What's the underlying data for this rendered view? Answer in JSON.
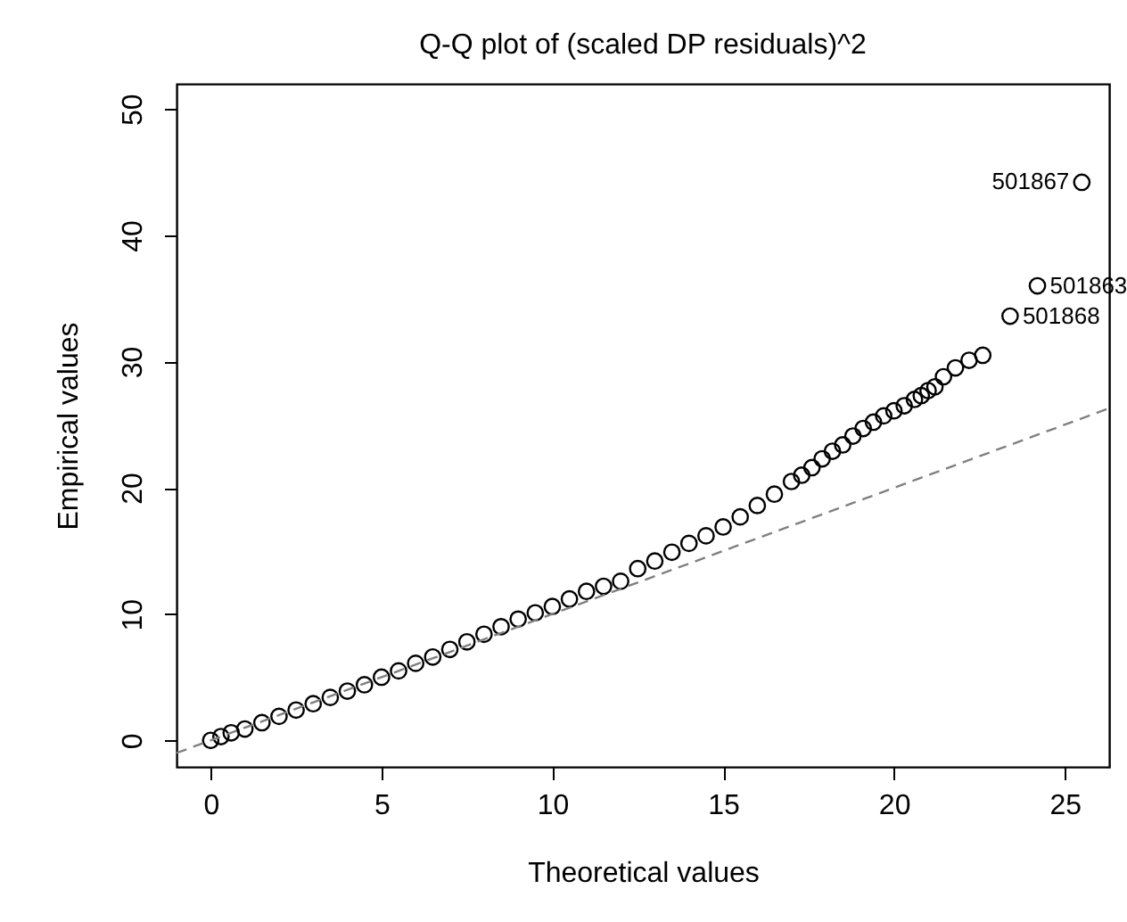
{
  "chart_data": {
    "type": "scatter",
    "title": "Q-Q plot of (scaled DP residuals)^2",
    "xlabel": "Theoretical values",
    "ylabel": "Empirical values",
    "xlim": [
      -1,
      26.3
    ],
    "ylim": [
      -2.1,
      52
    ],
    "xticks": [
      0,
      5,
      10,
      15,
      20,
      25
    ],
    "yticks": [
      0,
      10,
      20,
      30,
      40,
      50
    ],
    "grid": false,
    "series": [
      {
        "color": "#000000",
        "marker": "circle",
        "x": [
          0,
          0.3,
          0.6,
          1,
          1.5,
          2,
          2.5,
          3,
          3.5,
          4,
          4.5,
          5,
          5.5,
          6,
          6.5,
          7,
          7.5,
          8,
          8.5,
          9,
          9.5,
          10,
          10.5,
          11,
          11.5,
          12,
          12.5,
          13,
          13.5,
          14,
          14.5,
          15,
          15.5,
          16,
          16.5,
          17,
          17.3,
          17.6,
          17.9,
          18.2,
          18.5,
          18.8,
          19.1,
          19.4,
          19.7,
          20,
          20.3,
          20.6,
          20.8,
          21,
          21.2,
          21.45,
          21.8,
          22.2,
          22.6,
          23.4,
          24.2,
          25.5
        ],
        "values": [
          0,
          0.3,
          0.6,
          0.9,
          1.4,
          1.9,
          2.4,
          2.9,
          3.4,
          3.9,
          4.4,
          5,
          5.5,
          6.1,
          6.6,
          7.2,
          7.8,
          8.4,
          9,
          9.6,
          10.1,
          10.6,
          11.2,
          11.8,
          12.2,
          12.6,
          13.6,
          14.2,
          14.9,
          15.6,
          16.2,
          16.9,
          17.7,
          18.6,
          19.5,
          20.5,
          21,
          21.6,
          22.3,
          22.9,
          23.4,
          24.1,
          24.7,
          25.2,
          25.7,
          26.1,
          26.5,
          27,
          27.3,
          27.7,
          28,
          28.8,
          29.5,
          30.1,
          30.5,
          33.6,
          36,
          44.2
        ]
      },
      {
        "type": "line",
        "color": "#808080",
        "line_style": "dashed",
        "marker": "none",
        "x": [
          -1,
          26.3
        ],
        "values": [
          -1,
          26.3
        ]
      }
    ],
    "annotations": [
      {
        "text": "501867",
        "x": 25.5,
        "y": 44.2
      },
      {
        "text": "501863",
        "x": 24.2,
        "y": 36
      },
      {
        "text": "501868",
        "x": 23.4,
        "y": 33.6
      }
    ]
  }
}
